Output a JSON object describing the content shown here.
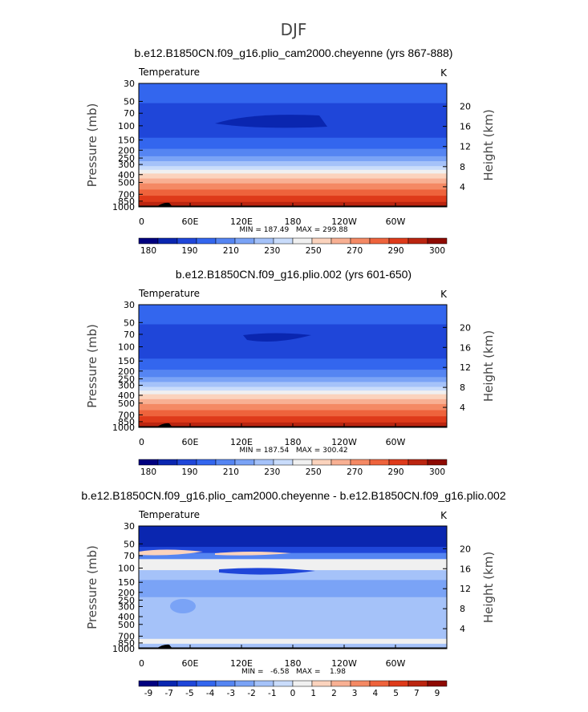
{
  "figure": {
    "season": "DJF",
    "shared": {
      "y_pressure_ticks": [
        "30",
        "50",
        "70",
        "100",
        "150",
        "200",
        "250",
        "300",
        "400",
        "500",
        "700",
        "850",
        "1000"
      ],
      "y_height_ticks": [
        "20",
        "16",
        "12",
        "8",
        "4"
      ],
      "x_ticks": [
        "0",
        "60E",
        "120E",
        "180",
        "120W",
        "60W"
      ],
      "ylabel_left": "Pressure (mb)",
      "ylabel_right": "Height (km)",
      "field_label": "Temperature",
      "units": "K"
    }
  },
  "chart_data": [
    {
      "type": "heatmap",
      "title": "b.e12.B1850CN.f09_g16.plio_cam2000.cheyenne (yrs 867-888)",
      "field": "Temperature",
      "units": "K",
      "xlabel": "",
      "ylabel": "Pressure (mb)",
      "y2label": "Height (km)",
      "x_ticks": [
        "0",
        "60E",
        "120E",
        "180",
        "120W",
        "60W"
      ],
      "y_ticks": [
        30,
        50,
        70,
        100,
        150,
        200,
        250,
        300,
        400,
        500,
        700,
        850,
        1000
      ],
      "y2_ticks": [
        20,
        16,
        12,
        8,
        4
      ],
      "ylim": [
        1000,
        30
      ],
      "min": 187.49,
      "max": 299.88,
      "minmax_text": "MIN = 187.49   MAX = 299.88",
      "colorbar": {
        "labels": [
          "180",
          "190",
          "210",
          "230",
          "250",
          "270",
          "290",
          "300"
        ],
        "colors": [
          "#00007f",
          "#0a26b0",
          "#1f46d9",
          "#3366ee",
          "#5585f2",
          "#7aa3f6",
          "#a5c2f9",
          "#c9dcfb",
          "#f0f0f0",
          "#fbd3bd",
          "#f8b093",
          "#f48964",
          "#ee633c",
          "#de3a1a",
          "#bb2510",
          "#8e0a02"
        ]
      }
    },
    {
      "type": "heatmap",
      "title": "b.e12.B1850CN.f09_g16.plio.002 (yrs 601-650)",
      "field": "Temperature",
      "units": "K",
      "xlabel": "",
      "ylabel": "Pressure (mb)",
      "y2label": "Height (km)",
      "x_ticks": [
        "0",
        "60E",
        "120E",
        "180",
        "120W",
        "60W"
      ],
      "y_ticks": [
        30,
        50,
        70,
        100,
        150,
        200,
        250,
        300,
        400,
        500,
        700,
        850,
        1000
      ],
      "y2_ticks": [
        20,
        16,
        12,
        8,
        4
      ],
      "ylim": [
        1000,
        30
      ],
      "min": 187.54,
      "max": 300.42,
      "minmax_text": "MIN = 187.54   MAX = 300.42",
      "colorbar": {
        "labels": [
          "180",
          "190",
          "210",
          "230",
          "250",
          "270",
          "290",
          "300"
        ],
        "colors": [
          "#00007f",
          "#0a26b0",
          "#1f46d9",
          "#3366ee",
          "#5585f2",
          "#7aa3f6",
          "#a5c2f9",
          "#c9dcfb",
          "#f0f0f0",
          "#fbd3bd",
          "#f8b093",
          "#f48964",
          "#ee633c",
          "#de3a1a",
          "#bb2510",
          "#8e0a02"
        ]
      }
    },
    {
      "type": "heatmap",
      "title": "b.e12.B1850CN.f09_g16.plio_cam2000.cheyenne - b.e12.B1850CN.f09_g16.plio.002",
      "field": "Temperature",
      "units": "K",
      "xlabel": "",
      "ylabel": "Pressure (mb)",
      "y2label": "Height (km)",
      "x_ticks": [
        "0",
        "60E",
        "120E",
        "180",
        "120W",
        "60W"
      ],
      "y_ticks": [
        30,
        50,
        70,
        100,
        150,
        200,
        250,
        300,
        400,
        500,
        700,
        850,
        1000
      ],
      "y2_ticks": [
        20,
        16,
        12,
        8,
        4
      ],
      "ylim": [
        1000,
        30
      ],
      "min": -6.58,
      "max": 1.98,
      "minmax_text": "MIN =   -6.58   MAX =    1.98",
      "colorbar": {
        "labels": [
          "-9",
          "-7",
          "-5",
          "-4",
          "-3",
          "-2",
          "-1",
          "0",
          "1",
          "2",
          "3",
          "4",
          "5",
          "7",
          "9"
        ],
        "colors": [
          "#00007f",
          "#0a26b0",
          "#1f46d9",
          "#3366ee",
          "#5585f2",
          "#7aa3f6",
          "#a5c2f9",
          "#c9dcfb",
          "#f0f0f0",
          "#fbd3bd",
          "#f8b093",
          "#f48964",
          "#ee633c",
          "#de3a1a",
          "#bb2510",
          "#8e0a02"
        ]
      }
    }
  ]
}
